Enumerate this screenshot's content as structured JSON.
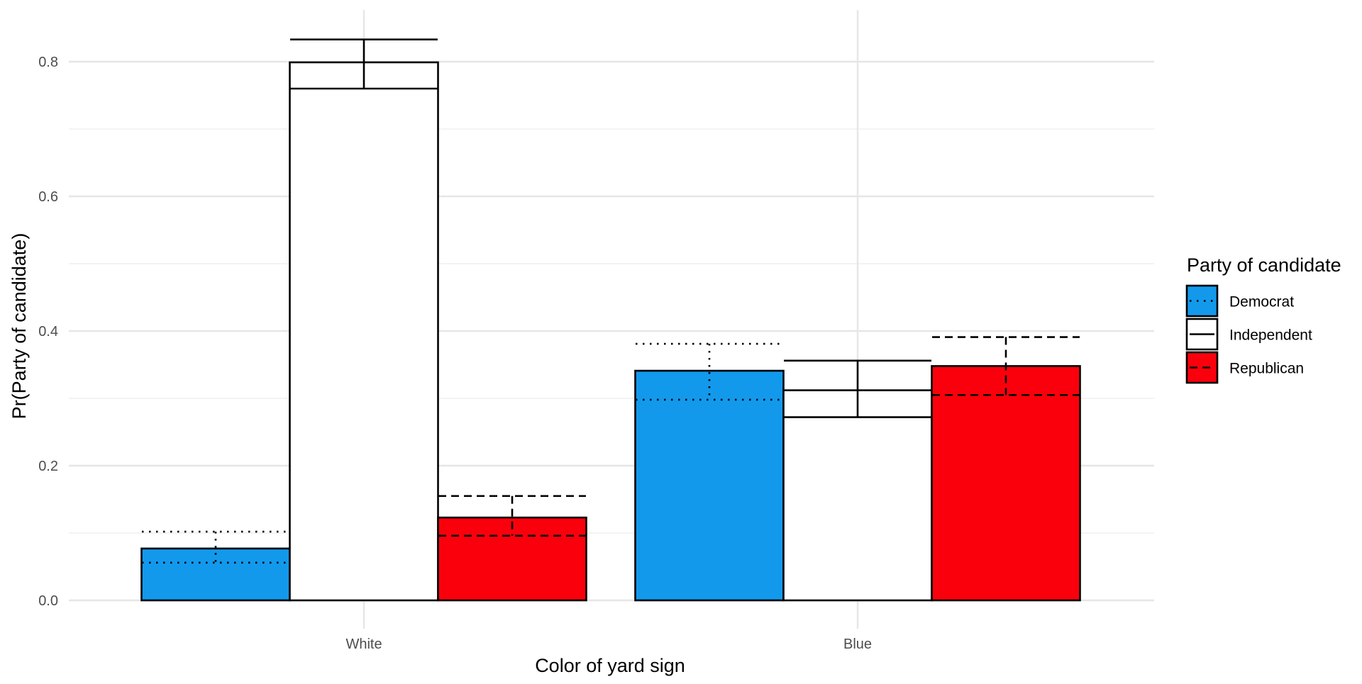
{
  "chart_data": {
    "type": "bar",
    "title": "",
    "xlabel": "Color of yard sign",
    "ylabel": "Pr(Party of candidate)",
    "categories": [
      "White",
      "Blue"
    ],
    "ylim": [
      0,
      0.875
    ],
    "yticks": [
      0.0,
      0.2,
      0.4,
      0.6,
      0.8
    ],
    "ytick_labels": [
      "0.0",
      "0.2",
      "0.4",
      "0.6",
      "0.8"
    ],
    "grid": true,
    "legend": {
      "title": "Party of candidate",
      "position": "right"
    },
    "series": [
      {
        "name": "Democrat",
        "color": "#1399ec",
        "linetype": "dotted",
        "values": [
          0.077,
          0.341
        ],
        "lower": [
          0.056,
          0.298
        ],
        "upper": [
          0.102,
          0.381
        ]
      },
      {
        "name": "Independent",
        "color": "#ffffff",
        "linetype": "solid",
        "values": [
          0.799,
          0.312
        ],
        "lower": [
          0.76,
          0.272
        ],
        "upper": [
          0.833,
          0.356
        ]
      },
      {
        "name": "Republican",
        "color": "#fa000c",
        "linetype": "dashed",
        "values": [
          0.123,
          0.348
        ],
        "lower": [
          0.096,
          0.305
        ],
        "upper": [
          0.155,
          0.391
        ]
      }
    ]
  }
}
